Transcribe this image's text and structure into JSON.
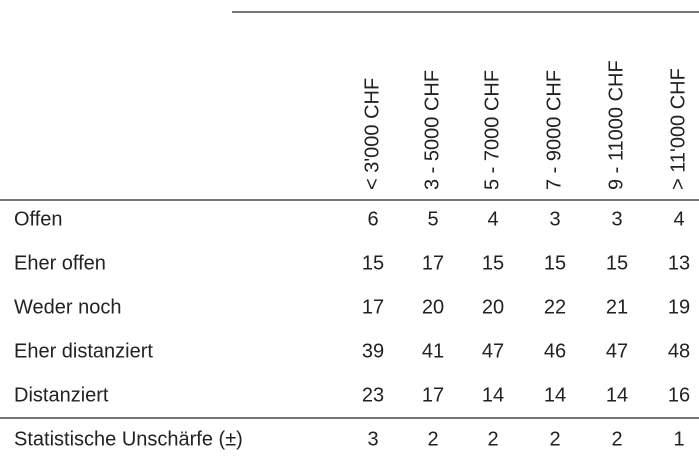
{
  "table": {
    "columns": [
      "< 3'000 CHF",
      "3 - 5000 CHF",
      "5 - 7000 CHF",
      "7 - 9000 CHF",
      "9 - 11000 CHF",
      "> 11'000 CHF"
    ],
    "rows": [
      {
        "label": "Offen",
        "values": [
          6,
          5,
          4,
          3,
          3,
          4
        ]
      },
      {
        "label": "Eher offen",
        "values": [
          15,
          17,
          15,
          15,
          15,
          13
        ]
      },
      {
        "label": "Weder noch",
        "values": [
          17,
          20,
          20,
          22,
          21,
          19
        ]
      },
      {
        "label": "Eher distanziert",
        "values": [
          39,
          41,
          47,
          46,
          47,
          48
        ]
      },
      {
        "label": "Distanziert",
        "values": [
          23,
          17,
          14,
          14,
          14,
          16
        ]
      }
    ],
    "summary": {
      "label": "Statistische Unschärfe (±)",
      "values": [
        3,
        2,
        2,
        2,
        2,
        1
      ]
    }
  }
}
